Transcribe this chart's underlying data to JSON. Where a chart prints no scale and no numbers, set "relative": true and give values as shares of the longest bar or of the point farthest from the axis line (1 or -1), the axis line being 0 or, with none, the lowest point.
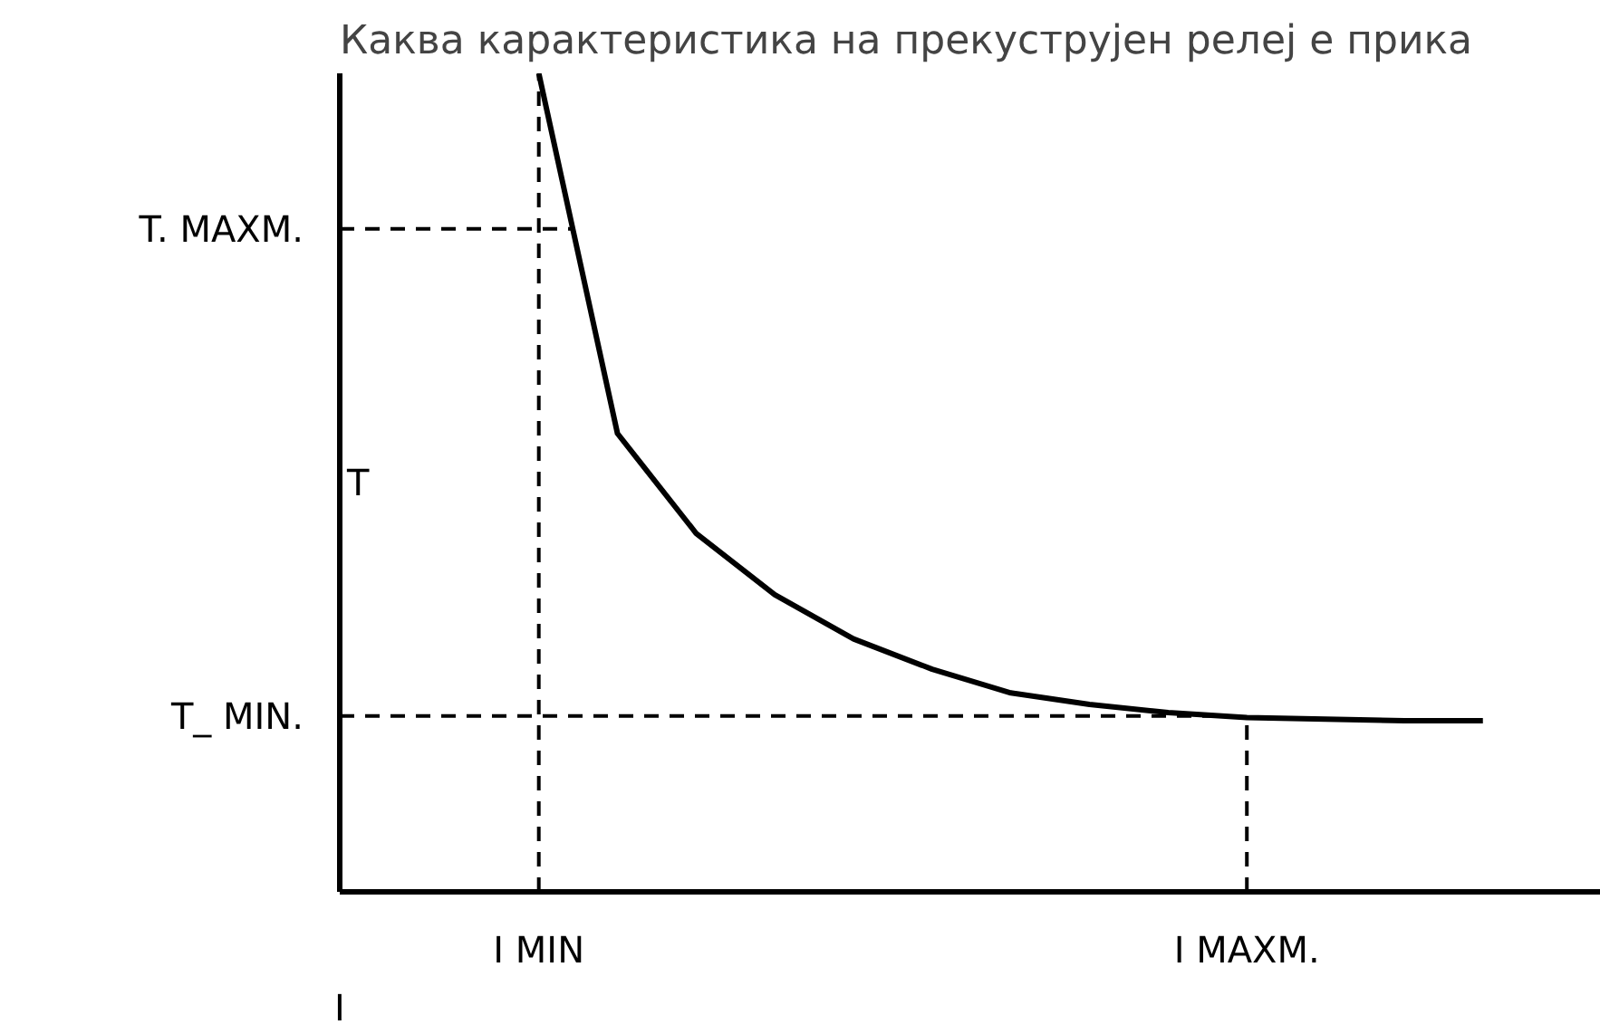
{
  "chart_data": {
    "type": "line",
    "title": "Каква карактеристика на прекуструјен релеј е прика",
    "xlabel": "I",
    "ylabel": "T",
    "relative": true,
    "tick_labels": "x",
    "grid": false,
    "marker": "none",
    "line_style": "solid",
    "categories": [
      "I MIN",
      null,
      null,
      null,
      null,
      null,
      null,
      null,
      null,
      "I MAXM.",
      null,
      null,
      null
    ],
    "series": [
      {
        "color": "#000000",
        "values": [
          1.0,
          0.56,
          0.438,
          0.363,
          0.309,
          0.272,
          0.243,
          0.229,
          0.219,
          0.213,
          0.211,
          0.209,
          0.209
        ]
      }
    ],
    "ref_lines": [
      {
        "axis": "y",
        "value": 0.81,
        "label": "T. MAXM.",
        "line_style": "dashed",
        "color": "#000000"
      },
      {
        "axis": "y",
        "value": 0.215,
        "label": "T_ MIN.",
        "line_style": "dashed",
        "color": "#000000"
      },
      {
        "axis": "x",
        "value": "I MIN",
        "line_style": "dashed",
        "color": "#000000"
      },
      {
        "axis": "x",
        "value": "I MAXM.",
        "line_style": "dashed",
        "color": "#000000"
      }
    ]
  }
}
